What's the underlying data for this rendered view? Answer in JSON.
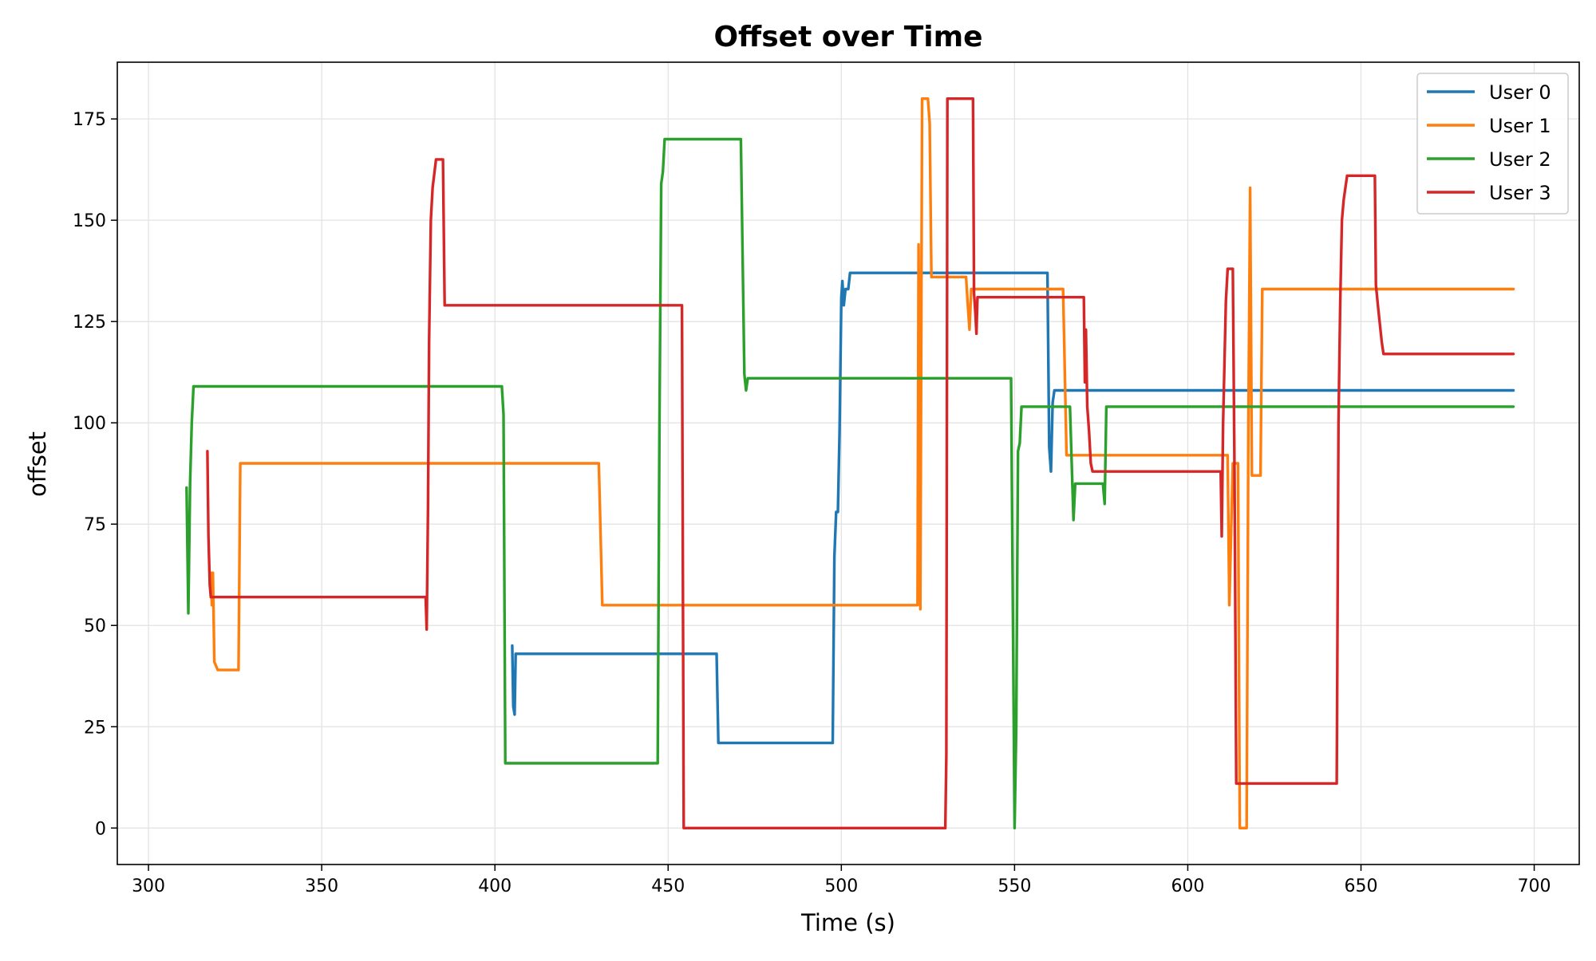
{
  "chart_data": {
    "type": "line",
    "title": "Offset over Time",
    "xlabel": "Time (s)",
    "ylabel": "offset",
    "xlim": [
      291,
      713
    ],
    "ylim": [
      -9,
      189
    ],
    "xticks": [
      300,
      350,
      400,
      450,
      500,
      550,
      600,
      650,
      700
    ],
    "yticks": [
      0,
      25,
      50,
      75,
      100,
      125,
      150,
      175
    ],
    "grid": true,
    "legend_position": "top-right",
    "series": [
      {
        "name": "User 0",
        "color": "#1f77b4",
        "points": [
          [
            405,
            45
          ],
          [
            405.3,
            30
          ],
          [
            405.7,
            28
          ],
          [
            406,
            43
          ],
          [
            464,
            43
          ],
          [
            464.5,
            21
          ],
          [
            497.5,
            21
          ],
          [
            498,
            67
          ],
          [
            498.5,
            78
          ],
          [
            499,
            78
          ],
          [
            499.5,
            98
          ],
          [
            500,
            131
          ],
          [
            500.3,
            135
          ],
          [
            500.7,
            129
          ],
          [
            501.2,
            133
          ],
          [
            502,
            133
          ],
          [
            502.5,
            137
          ],
          [
            558,
            137
          ],
          [
            559.5,
            137
          ],
          [
            560,
            94
          ],
          [
            560.5,
            88
          ],
          [
            561,
            105
          ],
          [
            561.5,
            108
          ],
          [
            694,
            108
          ]
        ]
      },
      {
        "name": "User 1",
        "color": "#ff7f0e",
        "points": [
          [
            318,
            63
          ],
          [
            318.3,
            55
          ],
          [
            318.6,
            63
          ],
          [
            319,
            41
          ],
          [
            320,
            39
          ],
          [
            326,
            39
          ],
          [
            326.5,
            90
          ],
          [
            430,
            90
          ],
          [
            431,
            55
          ],
          [
            522,
            55
          ],
          [
            522.3,
            144
          ],
          [
            522.8,
            54
          ],
          [
            523.3,
            180
          ],
          [
            525,
            180
          ],
          [
            525.5,
            174
          ],
          [
            526,
            136
          ],
          [
            536,
            136
          ],
          [
            536.5,
            129
          ],
          [
            537,
            123
          ],
          [
            537.5,
            133
          ],
          [
            564,
            133
          ],
          [
            565,
            92
          ],
          [
            611.5,
            92
          ],
          [
            612,
            55
          ],
          [
            613,
            90
          ],
          [
            614.5,
            90
          ],
          [
            615,
            0
          ],
          [
            617,
            0
          ],
          [
            617.5,
            100
          ],
          [
            618,
            158
          ],
          [
            618.5,
            87
          ],
          [
            621,
            87
          ],
          [
            621.5,
            133
          ],
          [
            694,
            133
          ]
        ]
      },
      {
        "name": "User 2",
        "color": "#2ca02c",
        "points": [
          [
            311,
            84
          ],
          [
            311.5,
            53
          ],
          [
            312,
            85
          ],
          [
            312.5,
            100
          ],
          [
            313,
            109
          ],
          [
            402,
            109
          ],
          [
            402.5,
            102
          ],
          [
            403,
            16
          ],
          [
            447,
            16
          ],
          [
            447.5,
            100
          ],
          [
            448,
            159
          ],
          [
            448.5,
            162
          ],
          [
            449,
            170
          ],
          [
            471,
            170
          ],
          [
            472,
            112
          ],
          [
            472.5,
            108
          ],
          [
            473,
            111
          ],
          [
            549,
            111
          ],
          [
            550,
            0
          ],
          [
            550.5,
            25
          ],
          [
            551,
            93
          ],
          [
            551.5,
            95
          ],
          [
            552,
            104
          ],
          [
            566,
            104
          ],
          [
            566.5,
            90
          ],
          [
            567,
            76
          ],
          [
            567.5,
            85
          ],
          [
            575.5,
            85
          ],
          [
            576,
            80
          ],
          [
            576.5,
            104
          ],
          [
            694,
            104
          ]
        ]
      },
      {
        "name": "User 3",
        "color": "#d62728",
        "points": [
          [
            317,
            93
          ],
          [
            317.3,
            72
          ],
          [
            317.7,
            60
          ],
          [
            318,
            57
          ],
          [
            380,
            57
          ],
          [
            380.3,
            49
          ],
          [
            380.7,
            80
          ],
          [
            381,
            120
          ],
          [
            381.5,
            150
          ],
          [
            382,
            158
          ],
          [
            383,
            165
          ],
          [
            385,
            165
          ],
          [
            385.5,
            129
          ],
          [
            454,
            129
          ],
          [
            454.5,
            0
          ],
          [
            530,
            0
          ],
          [
            530.3,
            18
          ],
          [
            530.6,
            180
          ],
          [
            538,
            180
          ],
          [
            538.3,
            132
          ],
          [
            538.7,
            127
          ],
          [
            539,
            122
          ],
          [
            539.3,
            131
          ],
          [
            570,
            131
          ],
          [
            570.3,
            110
          ],
          [
            570.6,
            123
          ],
          [
            571,
            104
          ],
          [
            571.5,
            98
          ],
          [
            572,
            90
          ],
          [
            572.5,
            88
          ],
          [
            609.5,
            88
          ],
          [
            609.8,
            72
          ],
          [
            610.2,
            100
          ],
          [
            611,
            130
          ],
          [
            611.5,
            138
          ],
          [
            613,
            138
          ],
          [
            613.5,
            88
          ],
          [
            614,
            11
          ],
          [
            643,
            11
          ],
          [
            643.5,
            100
          ],
          [
            644,
            130
          ],
          [
            644.5,
            150
          ],
          [
            645,
            155
          ],
          [
            646,
            161
          ],
          [
            654,
            161
          ],
          [
            654.3,
            134
          ],
          [
            655,
            128
          ],
          [
            656,
            120
          ],
          [
            656.5,
            117
          ],
          [
            694,
            117
          ]
        ]
      }
    ]
  }
}
